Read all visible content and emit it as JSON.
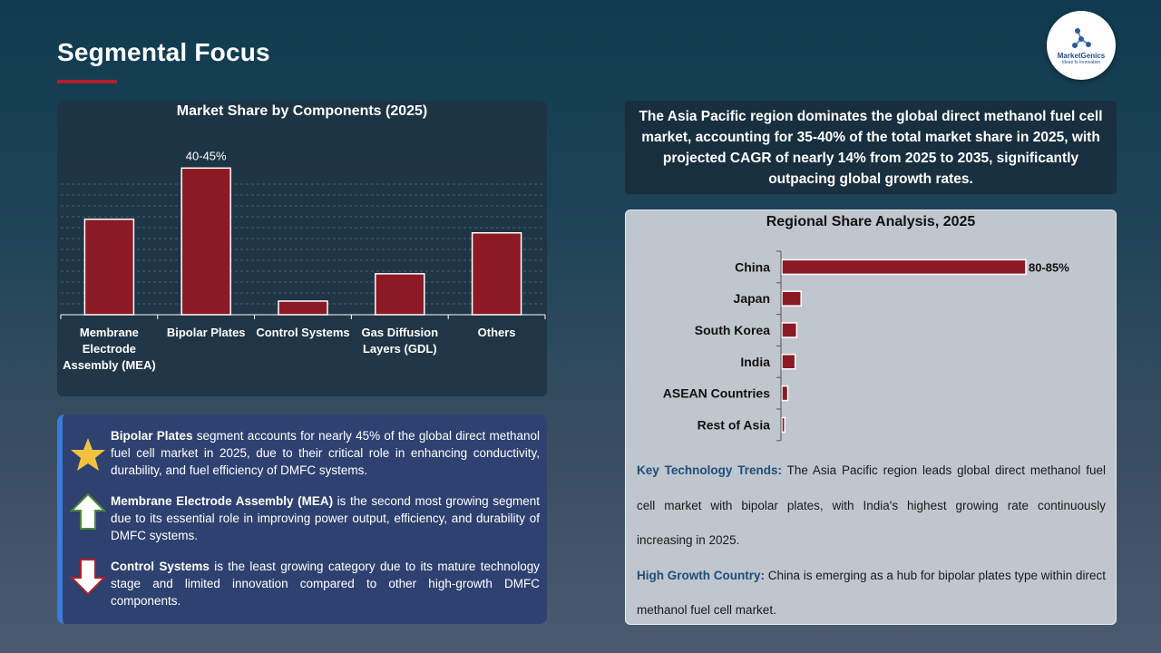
{
  "page": {
    "title": "Segmental Focus"
  },
  "logo": {
    "name": "MarketGenics",
    "tagline": "Ideas to Innovation"
  },
  "headline": "The Asia Pacific region dominates the global direct methanol fuel cell market, accounting for 35-40% of the total market share in 2025, with projected CAGR of nearly 14% from 2025 to 2035, significantly outpacing global growth rates.",
  "bullets": [
    {
      "icon": "star-icon",
      "bold": "Bipolar Plates",
      "text": " segment accounts for nearly 45% of the global direct methanol fuel cell market in 2025, due to their critical role in enhancing conductivity, durability, and fuel efficiency of DMFC systems."
    },
    {
      "icon": "arrow-up-icon",
      "bold": "Membrane Electrode Assembly (MEA)",
      "text": " is the second most growing segment due to its essential role in improving power output, efficiency, and durability of DMFC systems."
    },
    {
      "icon": "arrow-down-icon",
      "bold": "Control Systems",
      "text": " is the least growing category due to its mature technology stage and limited innovation compared to other high-growth DMFC components."
    }
  ],
  "notes": {
    "trends_label": "Key Technology Trends:",
    "trends_text": " The Asia Pacific region leads global direct methanol fuel cell market with bipolar plates, with India's highest growing rate continuously increasing in 2025.",
    "growth_label": "High Growth Country:",
    "growth_text": " China is emerging as a hub for bipolar plates type within direct methanol fuel cell market."
  },
  "colors": {
    "bar": "#8b1a24",
    "accent_red": "#b0202c",
    "star": "#f0c240",
    "note_label": "#1f4e7a"
  },
  "chart_data": [
    {
      "type": "bar",
      "title": "Market Share by Components (2025)",
      "categories": [
        "Membrane Electrode Assembly (MEA)",
        "Bipolar Plates",
        "Control Systems",
        "Gas Diffusion Layers (GDL)",
        "Others"
      ],
      "category_lines": [
        [
          "Membrane",
          "Electrode",
          "Assembly (MEA)"
        ],
        [
          "Bipolar Plates"
        ],
        [
          "Control Systems"
        ],
        [
          "Gas Diffusion",
          "Layers (GDL)"
        ],
        [
          "Others"
        ]
      ],
      "values": [
        28,
        43,
        4,
        12,
        24
      ],
      "data_labels": [
        "",
        "40-45%",
        "",
        "",
        ""
      ],
      "ylim": [
        0,
        50
      ],
      "grid": true
    },
    {
      "type": "bar",
      "orientation": "horizontal",
      "title": "Regional Share Analysis, 2025",
      "categories": [
        "China",
        "Japan",
        "South Korea",
        "India",
        "ASEAN Countries",
        "Rest of Asia"
      ],
      "values": [
        82.5,
        6.5,
        5,
        4.5,
        2,
        1
      ],
      "data_labels": [
        "80-85%",
        "",
        "",
        "",
        "",
        ""
      ],
      "xlim": [
        0,
        82.5
      ],
      "grid": false
    }
  ]
}
